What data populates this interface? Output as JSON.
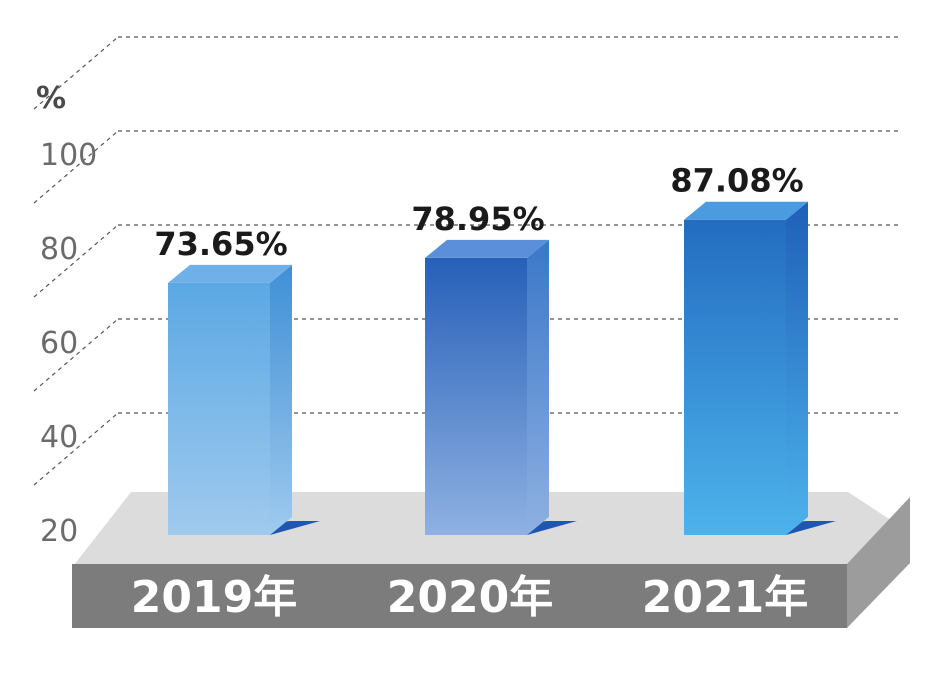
{
  "chart_data": {
    "type": "bar",
    "unit": "%",
    "categories": [
      "2019年",
      "2020年",
      "2021年"
    ],
    "values": [
      73.65,
      78.95,
      87.08
    ],
    "value_labels": [
      "73.65%",
      "78.95%",
      "87.08%"
    ],
    "y_ticks": [
      20,
      40,
      60,
      80,
      100
    ],
    "ylim": [
      20,
      120
    ],
    "grid": true,
    "style": "3d",
    "bar_colors": [
      {
        "top": "#6fb0e8",
        "front_top": "#5ba8e4",
        "front_bottom": "#9fcaee",
        "side": "#3f8fd6"
      },
      {
        "top": "#5b8fd9",
        "front_top": "#2660b8",
        "front_bottom": "#8fb1e2",
        "side": "#3a77c8"
      },
      {
        "top": "#4a9be0",
        "front_top": "#236cc0",
        "front_bottom": "#4db3ec",
        "side": "#1f5fb8"
      }
    ],
    "base_colors": {
      "top": "#dcdcdc",
      "front": "#7a7a7a",
      "side": "#9a9a9a"
    }
  }
}
